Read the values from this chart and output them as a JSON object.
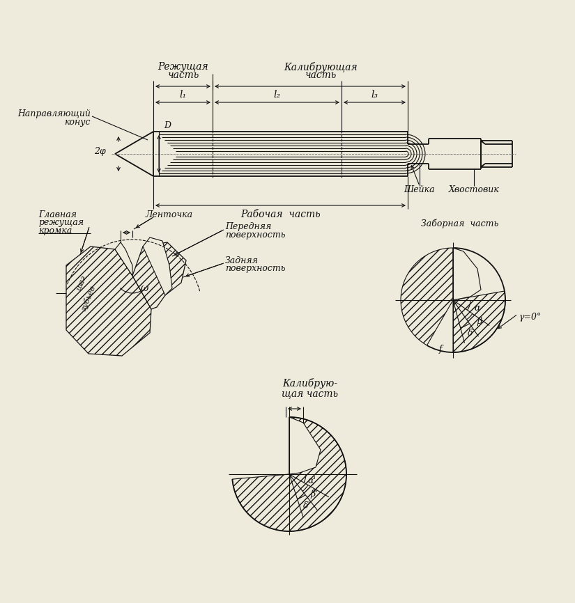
{
  "bg_color": "#eeeadc",
  "line_color": "#111111",
  "text_color": "#111111",
  "labels": {
    "rezh_chast": "Режущая",
    "kalib_chast": "Калибрующая",
    "chast": "часть",
    "chast2": "часть",
    "l1": "l₁",
    "l2": "l₂",
    "l3": "l₃",
    "naprav": "Направляющий",
    "konus": "конус",
    "raboch": "Рабочая  часть",
    "sheika": "Шейка",
    "hvost": "Хвостовик",
    "phi2": "2φ",
    "D": "D",
    "glavnaya": "Главная",
    "rezhkromka": "режущая",
    "kromka": "кромка",
    "lentochka": "Ленточка",
    "perednaya": "Передняя",
    "poverh1": "поверхность",
    "zadnyaya": "Задняя",
    "poverh2": "поверхность",
    "shag": "шаг",
    "zubiev": "зубьев",
    "omega": "ω",
    "zabornaya": "Заборная  часть",
    "gamma0": "γ=0°",
    "alpha": "α",
    "beta": "β",
    "delta": "δ",
    "f": "f",
    "kalibr_chast2": "Калибрую-",
    "schaya_chast": "щая часть",
    "alpha2": "α'",
    "beta2": "β'",
    "delta2": "δ'"
  }
}
